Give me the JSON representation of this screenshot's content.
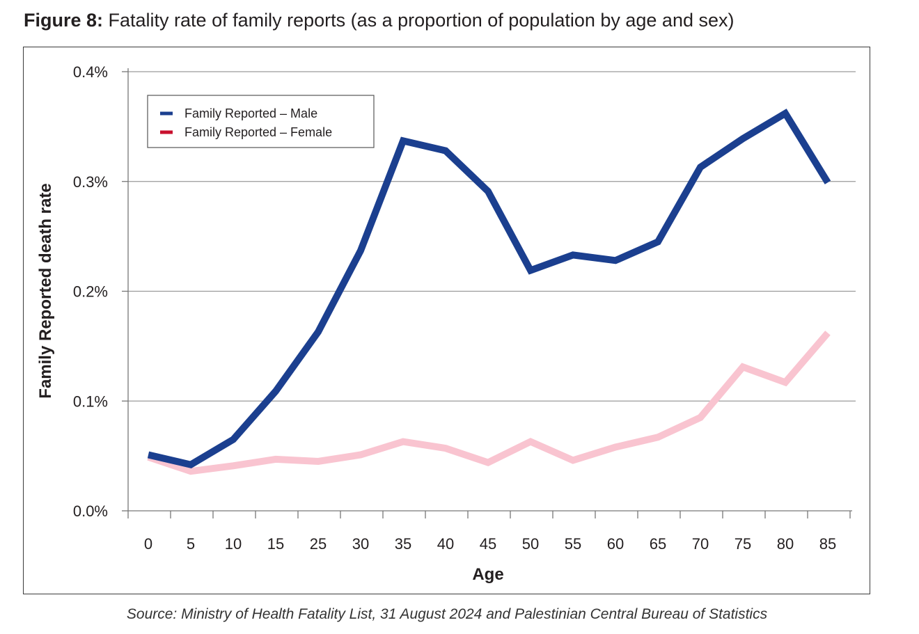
{
  "figure": {
    "label": "Figure 8:",
    "title": " Fatality rate of family reports (as a proportion of population by age and sex)",
    "source": "Source: Ministry of Health Fatality List, 31 August 2024 and Palestinian Central Bureau of Statistics"
  },
  "chart_data": {
    "type": "line",
    "title": "Fatality rate of family reports (as a proportion of population by age and sex)",
    "xlabel": "Age",
    "ylabel": "Family Reported death rate",
    "categories": [
      "0",
      "5",
      "10",
      "15",
      "25",
      "30",
      "35",
      "40",
      "45",
      "50",
      "55",
      "60",
      "65",
      "70",
      "75",
      "80",
      "85"
    ],
    "ylim": [
      0,
      0.4
    ],
    "yticks": [
      0.0,
      0.1,
      0.2,
      0.3,
      0.4
    ],
    "ytick_labels": [
      "0.0%",
      "0.1%",
      "0.2%",
      "0.3%",
      "0.4%"
    ],
    "grid": true,
    "legend_position": "top-left",
    "series": [
      {
        "name": "Family Reported – Male",
        "color": "#1b3f8f",
        "values": [
          0.051,
          0.042,
          0.065,
          0.109,
          0.163,
          0.237,
          0.337,
          0.328,
          0.291,
          0.219,
          0.233,
          0.228,
          0.245,
          0.313,
          0.339,
          0.362,
          0.299
        ]
      },
      {
        "name": "Family Reported – Female",
        "color": "#f9c4d0",
        "legend_color": "#c8102e",
        "values": [
          0.049,
          0.036,
          0.041,
          0.047,
          0.045,
          0.051,
          0.063,
          0.057,
          0.044,
          0.063,
          0.046,
          0.058,
          0.067,
          0.085,
          0.131,
          0.117,
          0.162
        ]
      }
    ]
  }
}
